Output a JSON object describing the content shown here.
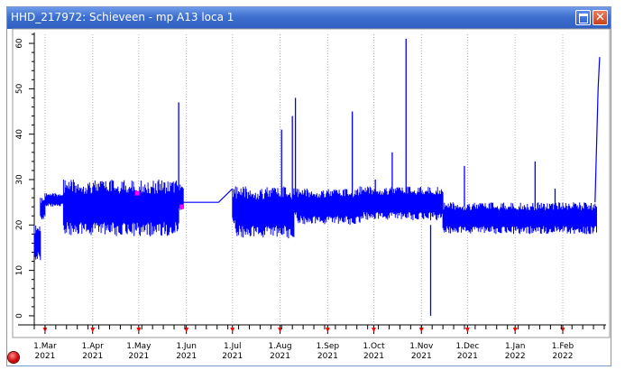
{
  "window": {
    "title": "HHD_217972: Schieveen - mp A13 loca 1",
    "maximize_icon": "maximize-icon",
    "close_icon": "close-icon",
    "close_glyph": "✕"
  },
  "colors": {
    "series": "#0000ff",
    "marker": "#ff00ff",
    "grid": "#b0b0b0",
    "tick_marker": "#ff0000",
    "titlebar": "#3d6fcf"
  },
  "chart_data": {
    "type": "line",
    "ylim": [
      -2,
      62
    ],
    "yticks": [
      0,
      10,
      20,
      30,
      40,
      50,
      60
    ],
    "xrange": [
      "2021-02-22",
      "2022-02-28"
    ],
    "xticks": [
      {
        "date": "2021-03-01",
        "month": "1.Mar",
        "year": "2021"
      },
      {
        "date": "2021-04-01",
        "month": "1.Apr",
        "year": "2021"
      },
      {
        "date": "2021-05-01",
        "month": "1.May",
        "year": "2021"
      },
      {
        "date": "2021-06-01",
        "month": "1.Jun",
        "year": "2021"
      },
      {
        "date": "2021-07-01",
        "month": "1.Jul",
        "year": "2021"
      },
      {
        "date": "2021-08-01",
        "month": "1.Aug",
        "year": "2021"
      },
      {
        "date": "2021-09-01",
        "month": "1.Sep",
        "year": "2021"
      },
      {
        "date": "2021-10-01",
        "month": "1.Oct",
        "year": "2021"
      },
      {
        "date": "2021-11-01",
        "month": "1.Nov",
        "year": "2021"
      },
      {
        "date": "2021-12-01",
        "month": "1.Dec",
        "year": "2021"
      },
      {
        "date": "2022-01-01",
        "month": "1.Jan",
        "year": "2022"
      },
      {
        "date": "2022-02-01",
        "month": "1.Feb",
        "year": "2022"
      }
    ],
    "grid": true,
    "series": [
      {
        "style": "envelope",
        "segments": [
          {
            "from": "2021-02-22",
            "to": "2021-02-26",
            "low": 12,
            "high": 20
          },
          {
            "from": "2021-02-26",
            "to": "2021-03-01",
            "low": 21,
            "high": 26
          },
          {
            "from": "2021-03-01",
            "to": "2021-03-13",
            "low": 24,
            "high": 27
          },
          {
            "from": "2021-03-13",
            "to": "2021-05-27",
            "low": 17.5,
            "high": 30
          },
          {
            "from": "2021-05-27",
            "to": "2021-05-30",
            "low": 23,
            "high": 29
          },
          {
            "from": "2021-07-01",
            "to": "2021-07-03",
            "low": 20,
            "high": 28
          },
          {
            "from": "2021-07-03",
            "to": "2021-08-10",
            "low": 17,
            "high": 28.5
          },
          {
            "from": "2021-08-10",
            "to": "2021-08-12",
            "low": 22,
            "high": 28
          },
          {
            "from": "2021-08-12",
            "to": "2021-09-22",
            "low": 20,
            "high": 28
          },
          {
            "from": "2021-09-22",
            "to": "2021-11-15",
            "low": 21,
            "high": 28.5
          },
          {
            "from": "2021-11-15",
            "to": "2022-02-23",
            "low": 18,
            "high": 25
          }
        ]
      },
      {
        "style": "line",
        "points": [
          {
            "x": "2021-05-30",
            "y": 25
          },
          {
            "x": "2021-06-22",
            "y": 25
          },
          {
            "x": "2021-07-01",
            "y": 28
          }
        ]
      },
      {
        "style": "spikes",
        "points": [
          {
            "x": "2021-05-27",
            "y": 47
          },
          {
            "x": "2021-08-02",
            "y": 41
          },
          {
            "x": "2021-08-09",
            "y": 44
          },
          {
            "x": "2021-08-11",
            "y": 48
          },
          {
            "x": "2021-09-17",
            "y": 45
          },
          {
            "x": "2021-10-02",
            "y": 30
          },
          {
            "x": "2021-10-13",
            "y": 36
          },
          {
            "x": "2021-10-22",
            "y": 61
          },
          {
            "x": "2021-11-07",
            "y": 0
          },
          {
            "x": "2021-11-29",
            "y": 33
          },
          {
            "x": "2022-01-14",
            "y": 34
          },
          {
            "x": "2022-01-27",
            "y": 28
          }
        ]
      },
      {
        "style": "ramp",
        "points": [
          {
            "x": "2022-02-22",
            "y": 25
          },
          {
            "x": "2022-02-24",
            "y": 50
          },
          {
            "x": "2022-02-25",
            "y": 57
          }
        ]
      },
      {
        "style": "markers",
        "points": [
          {
            "x": "2021-04-30",
            "y": 27
          },
          {
            "x": "2021-05-29",
            "y": 24
          }
        ]
      }
    ]
  }
}
